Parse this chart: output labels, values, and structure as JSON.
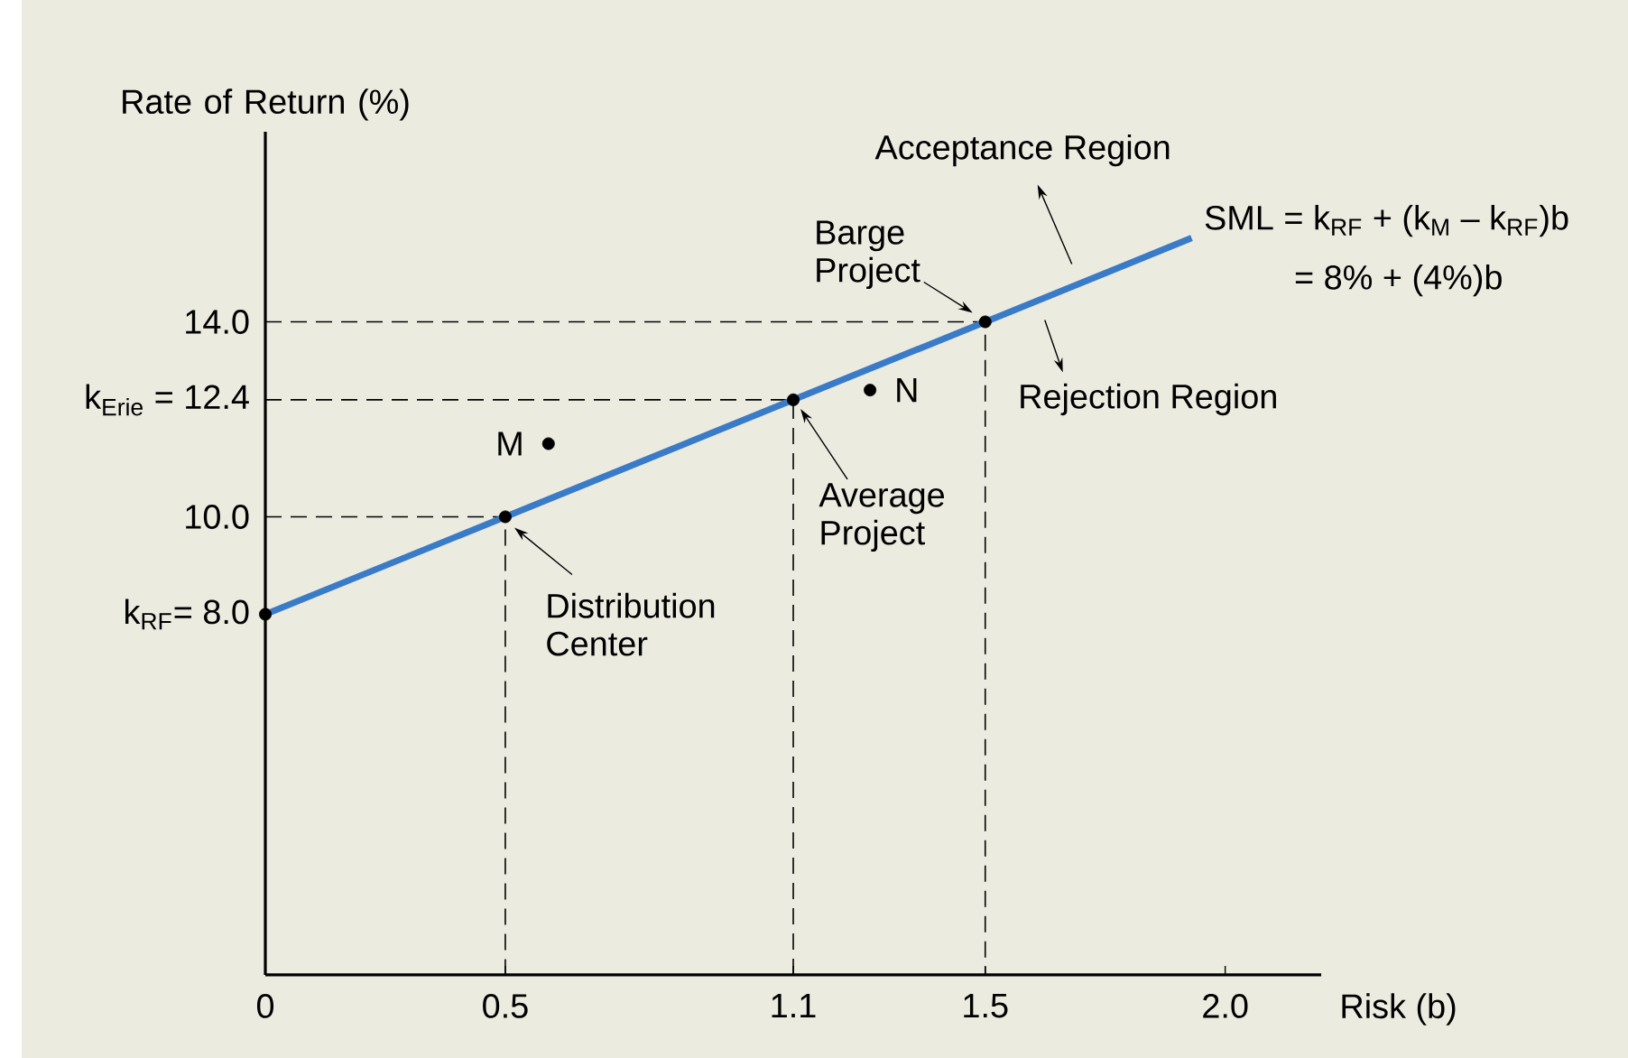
{
  "chart_data": {
    "type": "line",
    "xlabel": "Risk (b)",
    "ylabel": "Rate of Return (%)",
    "xlim": [
      0,
      2.2
    ],
    "ylim": [
      0.6,
      17.9
    ],
    "xticks": [
      0,
      0.5,
      1.1,
      1.5,
      {
        "value": 2.0,
        "label": "2.0"
      }
    ],
    "yticks": [
      {
        "value": 8,
        "label": "k$_{RF}$= 8.0"
      },
      {
        "value": 10,
        "label": "10.0"
      },
      {
        "value": 12.4,
        "label": "k$_{Erie}$ = 12.4"
      },
      {
        "value": 14,
        "label": "14.0"
      }
    ],
    "series": [
      {
        "type": "line",
        "color": "#000000",
        "line_style": "dashed",
        "marker": "none",
        "x": [
          0,
          0.5,
          0.5
        ],
        "values": [
          10,
          10,
          0.6
        ]
      },
      {
        "type": "line",
        "color": "#000000",
        "line_style": "dashed",
        "marker": "none",
        "x": [
          0,
          1.1,
          1.1
        ],
        "values": [
          12.4,
          12.4,
          0.6
        ]
      },
      {
        "type": "line",
        "color": "#000000",
        "line_style": "dashed",
        "marker": "none",
        "x": [
          0,
          1.5,
          1.5
        ],
        "values": [
          14,
          14,
          0.6
        ]
      },
      {
        "type": "line",
        "color": "#3a7bc8",
        "line_style": "solid",
        "marker": "none",
        "x": [
          0,
          1.93
        ],
        "values": [
          8,
          15.72
        ]
      },
      {
        "type": "scatter",
        "color": "#000000",
        "marker": "circle",
        "x": [
          0,
          0.5,
          1.1,
          1.5
        ],
        "values": [
          8,
          10,
          12.4,
          14
        ]
      },
      {
        "type": "scatter",
        "name": "M",
        "color": "#000000",
        "marker": "circle",
        "x": [
          0.59
        ],
        "values": [
          11.5
        ]
      },
      {
        "type": "scatter",
        "name": "N",
        "color": "#000000",
        "marker": "circle",
        "x": [
          1.26
        ],
        "values": [
          12.6
        ]
      }
    ],
    "annotations": [
      {
        "text": "Distribution Center",
        "x": 0.5,
        "y": 10
      },
      {
        "text": "Average Project",
        "x": 1.1,
        "y": 12.4
      },
      {
        "text": "Barge Project",
        "x": 1.5,
        "y": 14
      },
      "Acceptance Region",
      "Rejection Region",
      "SML = k$_{RF}$ + (k$_{M}$ – k$_{RF}$)b",
      "= 8% + (4%)b"
    ]
  }
}
